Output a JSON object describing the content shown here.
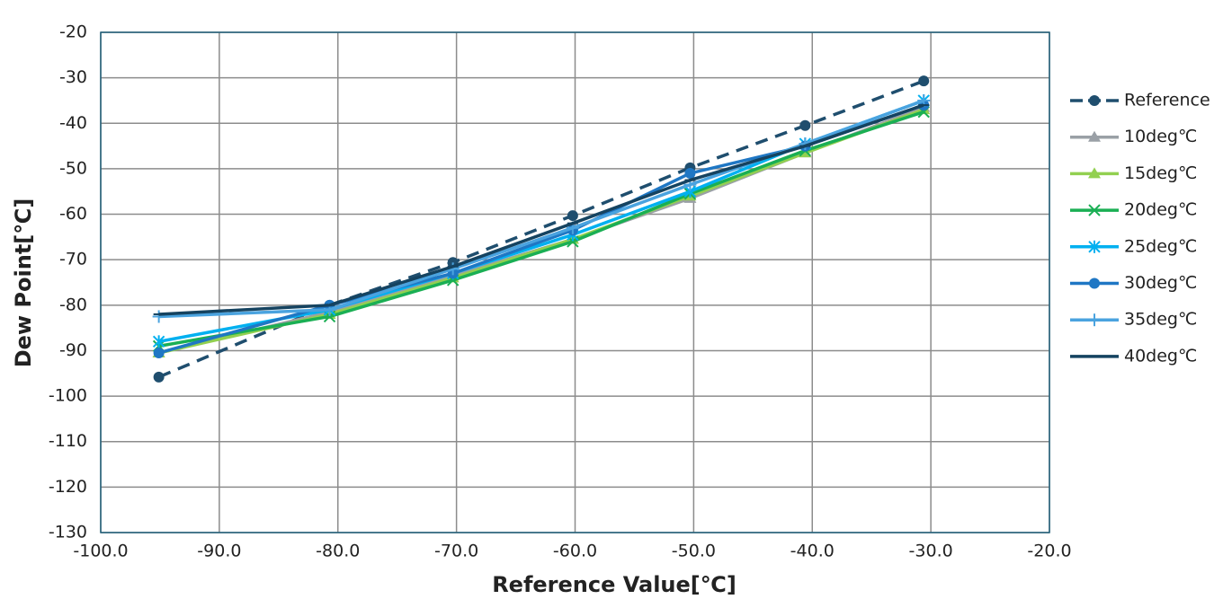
{
  "chart_data": {
    "type": "line",
    "xlabel": "Reference Value[℃]",
    "ylabel": "Dew Point[℃]",
    "x": [
      -95.1,
      -80.7,
      -70.3,
      -60.2,
      -50.3,
      -40.6,
      -30.6
    ],
    "series": [
      {
        "name": "Reference",
        "color": "#1f4e6e",
        "marker": "circle",
        "dashed": true,
        "values": [
          -95.8,
          -80.0,
          -70.6,
          -60.3,
          -49.8,
          -40.5,
          -30.7
        ]
      },
      {
        "name": "10deg℃",
        "color": "#9aa0a6",
        "marker": "triangle",
        "values": [
          -90.5,
          -81.5,
          -73.5,
          -65.5,
          -56.5,
          -46.5,
          -36.5
        ]
      },
      {
        "name": "15deg℃",
        "color": "#92d050",
        "marker": "triangle",
        "values": [
          -90.5,
          -82.0,
          -74.0,
          -65.5,
          -56.0,
          -46.5,
          -37.0
        ]
      },
      {
        "name": "20deg℃",
        "color": "#1aaf54",
        "marker": "x",
        "values": [
          -89.0,
          -82.5,
          -74.5,
          -66.0,
          -55.5,
          -46.0,
          -37.5
        ]
      },
      {
        "name": "25deg℃",
        "color": "#00b0f0",
        "marker": "asterisk",
        "values": [
          -88.0,
          -81.0,
          -73.0,
          -64.5,
          -55.0,
          -44.5,
          -35.0
        ]
      },
      {
        "name": "30deg℃",
        "color": "#1f77c4",
        "marker": "circle",
        "values": [
          -90.5,
          -80.0,
          -73.0,
          -63.5,
          -51.0,
          -45.0,
          -36.0
        ]
      },
      {
        "name": "35deg℃",
        "color": "#4aa3df",
        "marker": "plus",
        "values": [
          -82.5,
          -81.0,
          -72.0,
          -63.0,
          -53.5,
          -44.5,
          -35.0
        ]
      },
      {
        "name": "40deg℃",
        "color": "#154360",
        "marker": "dash",
        "values": [
          -82.0,
          -80.0,
          -71.5,
          -62.0,
          -52.5,
          -45.0,
          -36.0
        ]
      }
    ],
    "xlim": [
      -100,
      -20
    ],
    "xticks": [
      {
        "value": -100,
        "label": "-100.0"
      },
      {
        "value": -90,
        "label": "-90.0"
      },
      {
        "value": -80,
        "label": "-80.0"
      },
      {
        "value": -70,
        "label": "-70.0"
      },
      {
        "value": -60,
        "label": "-60.0"
      },
      {
        "value": -50,
        "label": "-50.0"
      },
      {
        "value": -40,
        "label": "-40.0"
      },
      {
        "value": -30,
        "label": "-30.0"
      },
      {
        "value": -20,
        "label": "-20.0"
      }
    ],
    "ylim": [
      -130,
      -20
    ],
    "yticks": [
      -20,
      -30,
      -40,
      -50,
      -60,
      -70,
      -80,
      -90,
      -100,
      -110,
      -120,
      -130
    ],
    "grid": true,
    "legend": "right"
  }
}
